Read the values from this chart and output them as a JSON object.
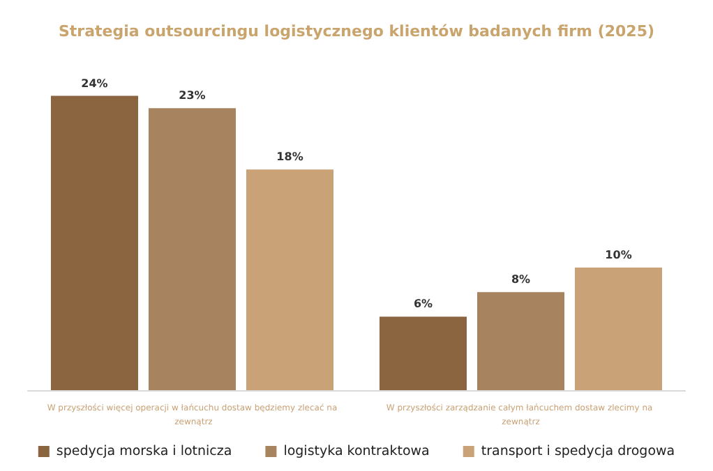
{
  "chart_data": {
    "type": "bar",
    "title": "Strategia outsourcingu logistycznego klientów badanych firm (2025)",
    "categories": [
      "W przyszłości więcej operacji w łańcuchu dostaw będziemy zlecać na zewnątrz",
      "W przyszłości zarządzanie całym łańcuchem dostaw zlecimy na zewnątrz"
    ],
    "series": [
      {
        "name": "spedycja morska i lotnicza",
        "color": "#8b6440",
        "values": [
          24,
          6
        ],
        "value_labels": [
          "24%",
          "6%"
        ]
      },
      {
        "name": "logistyka kontraktowa",
        "color": "#a7845f",
        "values": [
          23,
          8
        ],
        "value_labels": [
          "23%",
          "8%"
        ]
      },
      {
        "name": "transport i spedycja drogowa",
        "color": "#c9a277",
        "values": [
          18,
          10
        ],
        "value_labels": [
          "18%",
          "10%"
        ]
      }
    ],
    "legend": "bottom"
  }
}
